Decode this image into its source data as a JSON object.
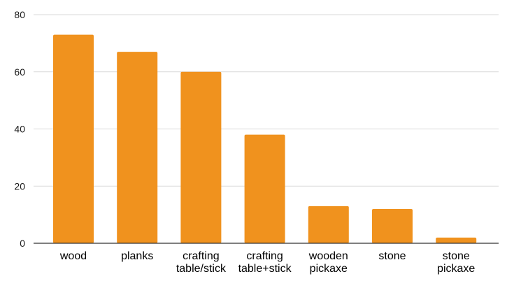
{
  "chart_data": {
    "type": "bar",
    "title": "",
    "xlabel": "",
    "ylabel": "",
    "ylim": [
      0,
      80
    ],
    "yticks": [
      0,
      20,
      40,
      60,
      80
    ],
    "grid": true,
    "legend": "none",
    "categories": [
      [
        "wood"
      ],
      [
        "planks"
      ],
      [
        "crafting",
        "table/stick"
      ],
      [
        "crafting",
        "table+stick"
      ],
      [
        "wooden",
        "pickaxe"
      ],
      [
        "stone"
      ],
      [
        "stone",
        "pickaxe"
      ]
    ],
    "values": [
      73,
      67,
      60,
      38,
      13,
      12,
      2
    ],
    "colors": {
      "bar": "#f0921e"
    }
  }
}
